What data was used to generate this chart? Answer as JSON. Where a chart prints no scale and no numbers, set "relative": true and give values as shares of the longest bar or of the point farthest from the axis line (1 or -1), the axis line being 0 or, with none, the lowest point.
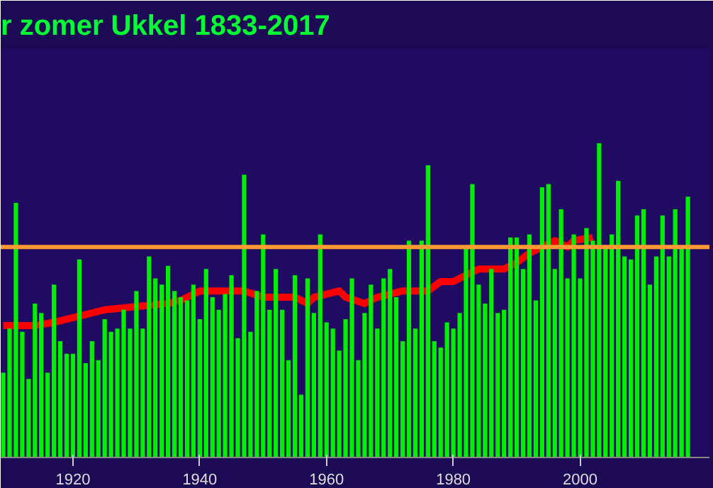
{
  "chart_data": {
    "type": "bar",
    "title": "r zomer Ukkel 1833-2017",
    "relative": true,
    "x": [
      1909,
      1910,
      1911,
      1912,
      1913,
      1914,
      1915,
      1916,
      1917,
      1918,
      1919,
      1920,
      1921,
      1922,
      1923,
      1924,
      1925,
      1926,
      1927,
      1928,
      1929,
      1930,
      1931,
      1932,
      1933,
      1934,
      1935,
      1936,
      1937,
      1938,
      1939,
      1940,
      1941,
      1942,
      1943,
      1944,
      1945,
      1946,
      1947,
      1948,
      1949,
      1950,
      1951,
      1952,
      1953,
      1954,
      1955,
      1956,
      1957,
      1958,
      1959,
      1960,
      1961,
      1962,
      1963,
      1964,
      1965,
      1966,
      1967,
      1968,
      1969,
      1970,
      1971,
      1972,
      1973,
      1974,
      1975,
      1976,
      1977,
      1978,
      1979,
      1980,
      1981,
      1982,
      1983,
      1984,
      1985,
      1986,
      1987,
      1988,
      1989,
      1990,
      1991,
      1992,
      1993,
      1994,
      1995,
      1996,
      1997,
      1998,
      1999,
      2000,
      2001,
      2002,
      2003,
      2004,
      2005,
      2006,
      2007,
      2008,
      2009,
      2010,
      2011,
      2012,
      2013,
      2014,
      2015,
      2016,
      2017
    ],
    "xlim": [
      1908.6,
      2020.4
    ],
    "xticks": [
      1920,
      1940,
      1960,
      1980,
      2000
    ],
    "series": [
      {
        "color": "#00ee00",
        "values": [
          0.27,
          0.41,
          0.81,
          0.4,
          0.25,
          0.49,
          0.46,
          0.27,
          0.55,
          0.37,
          0.33,
          0.33,
          0.63,
          0.3,
          0.37,
          0.31,
          0.44,
          0.4,
          0.41,
          0.47,
          0.41,
          0.53,
          0.41,
          0.64,
          0.57,
          0.55,
          0.61,
          0.53,
          0.51,
          0.5,
          0.55,
          0.44,
          0.6,
          0.51,
          0.47,
          0.52,
          0.58,
          0.38,
          0.9,
          0.4,
          0.53,
          0.71,
          0.47,
          0.6,
          0.47,
          0.31,
          0.58,
          0.2,
          0.57,
          0.46,
          0.71,
          0.43,
          0.41,
          0.34,
          0.44,
          0.57,
          0.31,
          0.46,
          0.55,
          0.41,
          0.57,
          0.6,
          0.51,
          0.37,
          0.69,
          0.41,
          0.69,
          0.93,
          0.37,
          0.35,
          0.43,
          0.41,
          0.46,
          0.67,
          0.87,
          0.55,
          0.49,
          0.6,
          0.46,
          0.47,
          0.7,
          0.7,
          0.6,
          0.71,
          0.5,
          0.86,
          0.87,
          0.6,
          0.79,
          0.57,
          0.71,
          0.57,
          0.73,
          0.69,
          1,
          0.67,
          0.71,
          0.88,
          0.64,
          0.63,
          0.77,
          0.79,
          0.55,
          0.64,
          0.77,
          0.64,
          0.79,
          0.67,
          0.83
        ]
      },
      {
        "type": "line",
        "color": "#ff0000",
        "x": [
          1909,
          1914,
          1917,
          1921,
          1925,
          1930,
          1935,
          1937,
          1940,
          1945,
          1947,
          1950,
          1955,
          1957,
          1958,
          1962,
          1963,
          1966,
          1968,
          1972,
          1976,
          1978,
          1980,
          1982,
          1984,
          1988,
          1990,
          1992,
          1994,
          1996,
          1998,
          1999,
          2002
        ],
        "values": [
          0.42,
          0.42,
          0.43,
          0.45,
          0.47,
          0.48,
          0.49,
          0.5,
          0.53,
          0.53,
          0.53,
          0.51,
          0.51,
          0.49,
          0.51,
          0.53,
          0.51,
          0.49,
          0.51,
          0.53,
          0.53,
          0.56,
          0.56,
          0.58,
          0.6,
          0.6,
          0.62,
          0.65,
          0.67,
          0.69,
          0.67,
          0.69,
          0.7
        ]
      }
    ],
    "ref_lines": [
      {
        "axis": "y",
        "value": 0.67,
        "color": "#ff9933"
      }
    ]
  }
}
